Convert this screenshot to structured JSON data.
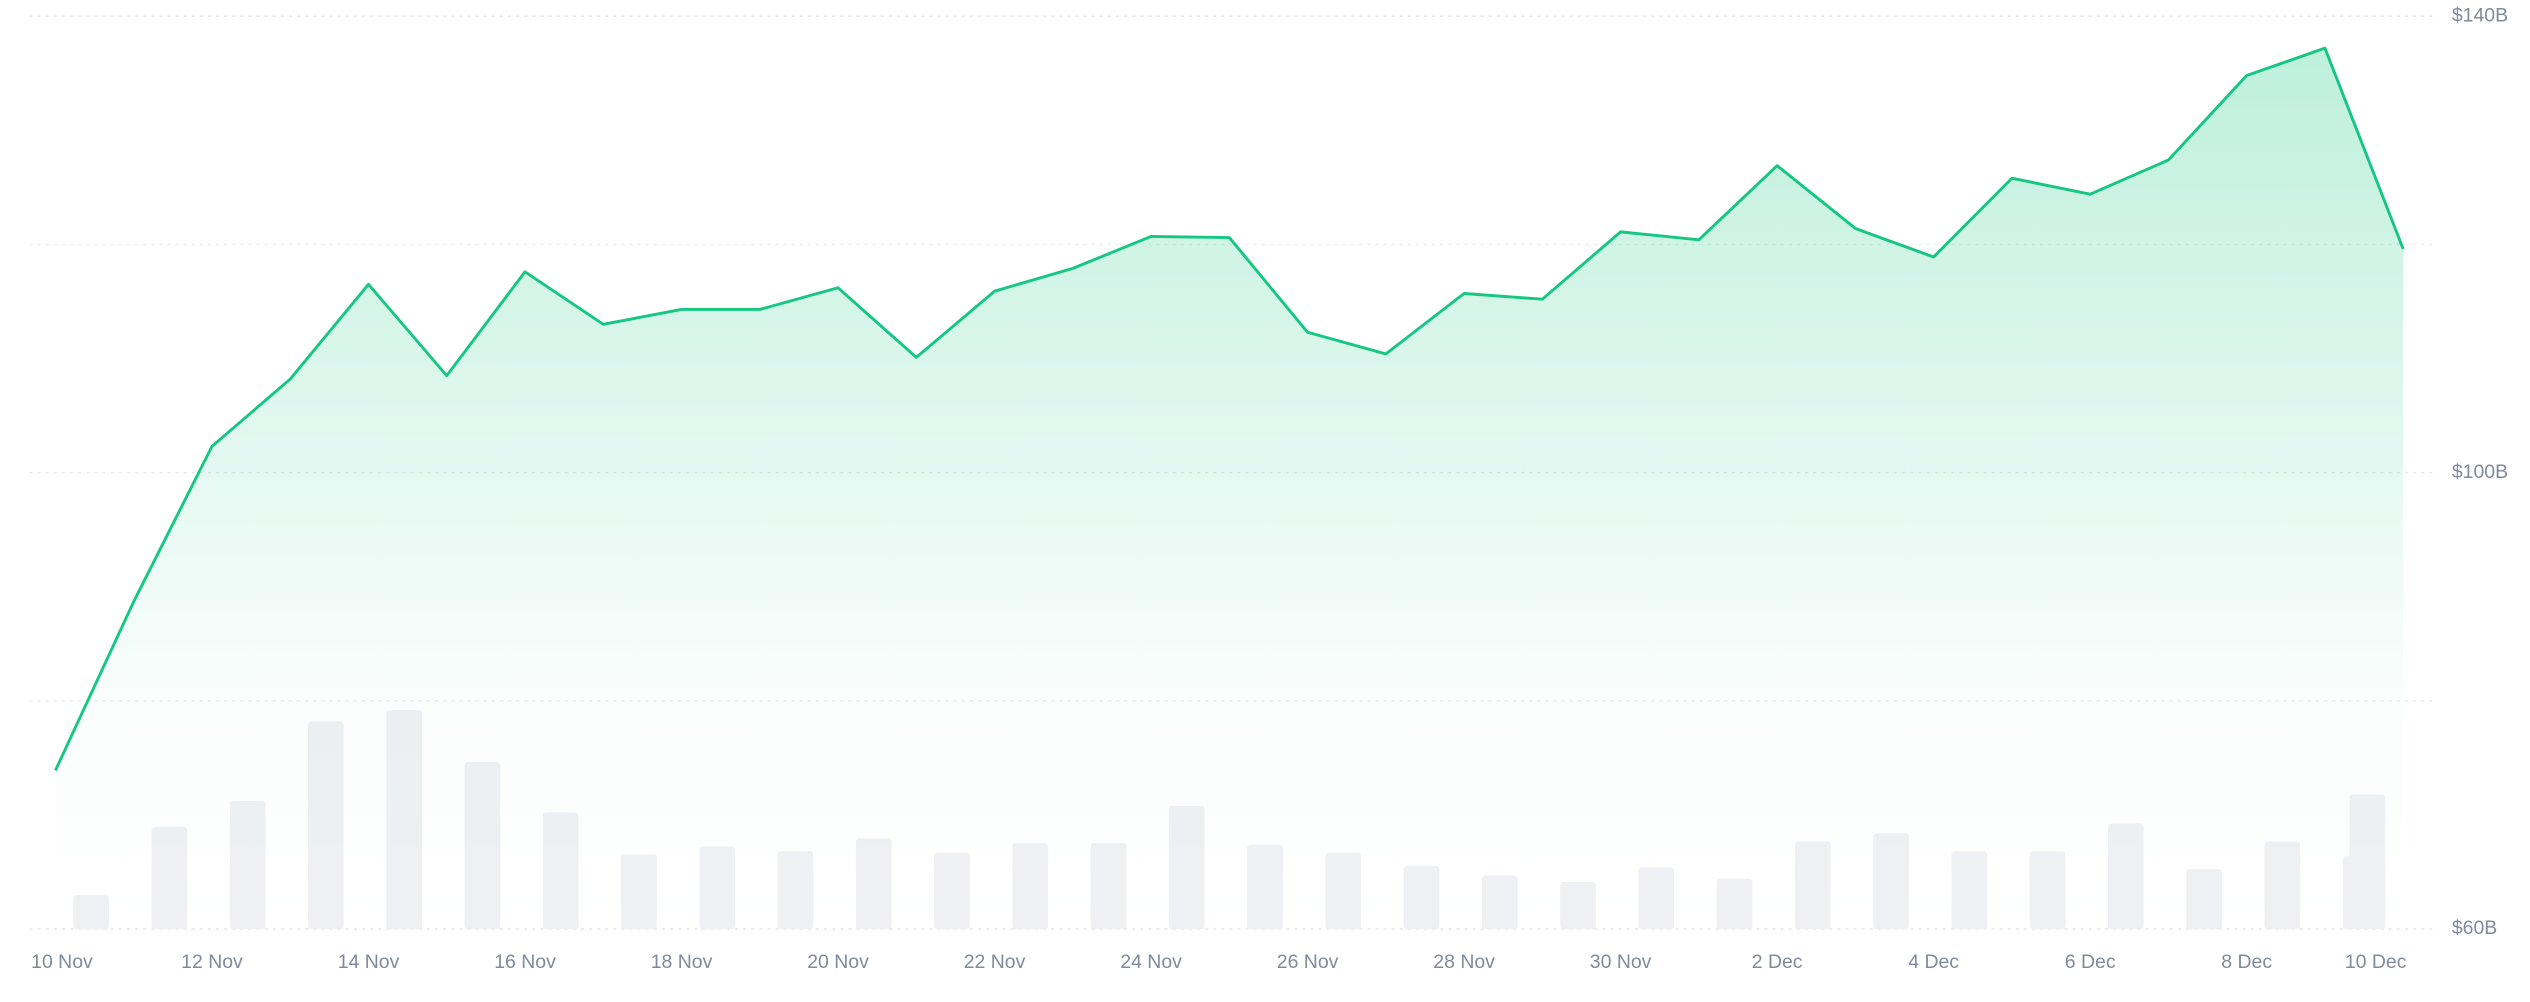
{
  "chart_data": {
    "type": "line",
    "categories": [
      "10 Nov",
      null,
      "12 Nov",
      null,
      "14 Nov",
      null,
      "16 Nov",
      null,
      "18 Nov",
      null,
      "20 Nov",
      null,
      "22 Nov",
      null,
      "24 Nov",
      null,
      "26 Nov",
      null,
      "28 Nov",
      null,
      "30 Nov",
      null,
      "2 Dec",
      null,
      "4 Dec",
      null,
      "6 Dec",
      null,
      "8 Dec",
      null,
      "10 Dec"
    ],
    "series": [
      {
        "type": "line",
        "color": "#16c784",
        "values": [
          73.9,
          88.7,
          102.3,
          108.2,
          116.5,
          108.5,
          117.6,
          113.0,
          114.3,
          114.3,
          116.2,
          110.1,
          115.9,
          117.9,
          120.7,
          120.6,
          112.3,
          110.4,
          115.7,
          115.2,
          121.1,
          120.4,
          126.9,
          121.4,
          118.9,
          125.8,
          124.4,
          127.4,
          134.8,
          137.2,
          119.6
        ]
      },
      {
        "type": "bar",
        "axis": "y2",
        "color": "#eff0f4",
        "values": [
          21,
          63,
          79,
          128,
          135,
          103,
          72,
          46,
          51,
          48,
          56,
          47,
          53,
          53,
          76,
          52,
          47,
          39,
          33,
          29,
          38,
          31,
          54,
          59,
          48,
          48,
          65,
          37,
          54,
          45,
          83
        ]
      }
    ],
    "ylim": [
      60,
      140
    ],
    "yticks": [
      {
        "value": 60,
        "label": "$60B"
      },
      {
        "value": 100,
        "label": "$100B"
      },
      {
        "value": 140,
        "label": "$140B"
      }
    ],
    "minor_yticks": [
      80,
      120
    ],
    "y2lim": [
      0,
      563
    ],
    "grid": true
  }
}
